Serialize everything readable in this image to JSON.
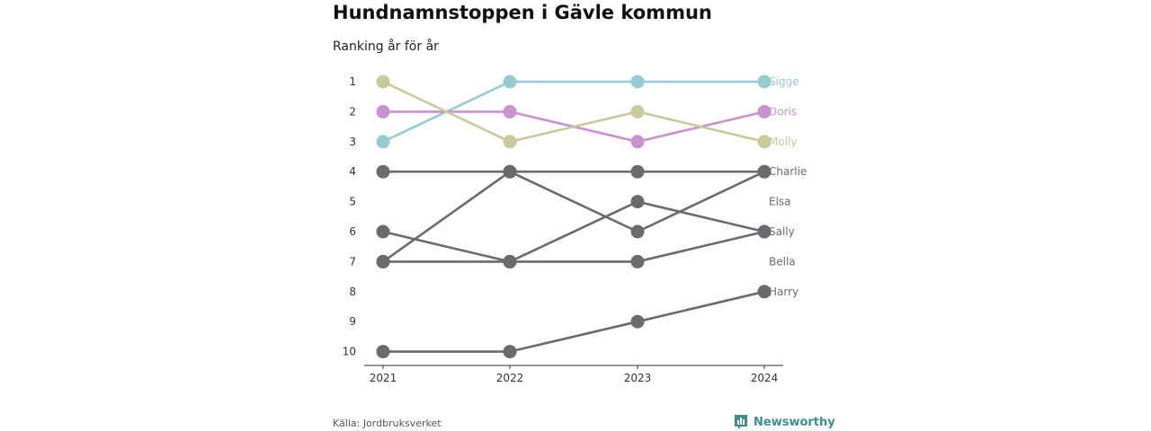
{
  "header": {
    "title": "Hundnamnstoppen i Gävle kommun",
    "subtitle": "Ranking år för år"
  },
  "footer": {
    "source": "Källa: Jordbruksverket",
    "brand": "Newsworthy",
    "brand_icon": "bar-chart-flag-icon"
  },
  "colors": {
    "Sigge": "#95cccf",
    "Doris": "#c893cf",
    "Molly": "#c9c99a",
    "default": "#6b6b6f",
    "brand": "#3d8f8a"
  },
  "chart_data": {
    "type": "line",
    "title": "Hundnamnstoppen i Gävle kommun",
    "subtitle": "Ranking år för år",
    "x": [
      "2021",
      "2022",
      "2023",
      "2024"
    ],
    "y_ticks": [
      1,
      2,
      3,
      4,
      5,
      6,
      7,
      8,
      9,
      10
    ],
    "y_reversed": true,
    "ylim": [
      1,
      10
    ],
    "grid": false,
    "legend": "direct labels at right end of lines",
    "series": [
      {
        "name": "Sigge",
        "values": [
          3,
          1,
          1,
          1
        ]
      },
      {
        "name": "Doris",
        "values": [
          2,
          2,
          3,
          2
        ]
      },
      {
        "name": "Molly",
        "values": [
          1,
          3,
          2,
          3
        ]
      },
      {
        "name": "Charlie",
        "values": [
          4,
          4,
          4,
          4
        ]
      },
      {
        "name": "Elsa",
        "values": [
          7,
          4,
          6,
          4
        ]
      },
      {
        "name": "Sally",
        "values": [
          6,
          7,
          5,
          6
        ]
      },
      {
        "name": "Bella",
        "values": [
          7,
          7,
          7,
          6
        ]
      },
      {
        "name": "Harry",
        "values": [
          10,
          10,
          9,
          8
        ]
      }
    ],
    "labels": [
      {
        "name": "Sigge",
        "rank": 1
      },
      {
        "name": "Doris",
        "rank": 2
      },
      {
        "name": "Molly",
        "rank": 3
      },
      {
        "name": "Charlie",
        "rank": 4
      },
      {
        "name": "Elsa",
        "rank": 5
      },
      {
        "name": "Sally",
        "rank": 6
      },
      {
        "name": "Bella",
        "rank": 7
      },
      {
        "name": "Harry",
        "rank": 8
      }
    ]
  }
}
